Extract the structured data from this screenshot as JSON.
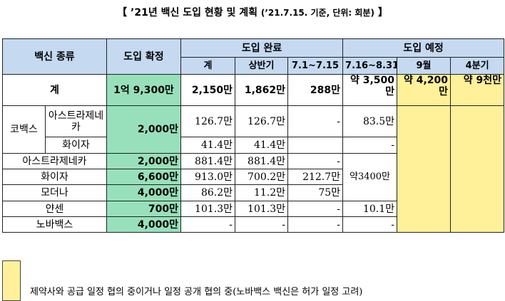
{
  "title": {
    "main": "【 ’21년 백신 도입 현황 및 계획 ",
    "sub": "(’21.7.15. 기준, 단위: 회분)",
    "end": " 】"
  },
  "header": {
    "vaccine_type": "백신 종류",
    "confirmed": "도입 확정",
    "completed": "도입 완료",
    "planned": "도입 예정",
    "total": "계",
    "first_half": "상반기",
    "jul_1_15": "7.1~7.15",
    "jul_16_aug_31": "7.16~8.31",
    "sep": "9월",
    "q4": "4분기"
  },
  "rows": {
    "total": {
      "label": "계",
      "confirmed": "1억 9,300만",
      "done_total": "2,150만",
      "first_half": "1,862만",
      "jul_1_15": "288만",
      "jul_16_aug_31": "약 3,500만",
      "sep": "약 4,200만",
      "q4": "약 9천만"
    },
    "covax": {
      "group_label": "코백스",
      "astra": {
        "label": "아스트라제네카",
        "confirmed": "2,000만",
        "done_total": "126.7만",
        "first_half": "126.7만",
        "jul_1_15": "-",
        "jul_16_aug_31": "83.5만"
      },
      "pfizer": {
        "label": "화이자",
        "done_total": "41.4만",
        "first_half": "41.4만",
        "jul_1_15": "",
        "jul_16_aug_31": "-"
      }
    },
    "astra": {
      "label": "아스트라제네카",
      "confirmed": "2,000만",
      "done_total": "881.4만",
      "first_half": "881.4만",
      "jul_1_15": "-"
    },
    "pfizer": {
      "label": "화이자",
      "confirmed": "6,600만",
      "done_total": "913.0만",
      "first_half": "700.2만",
      "jul_1_15": "212.7만",
      "jul_16_aug_31": "약3400만"
    },
    "moderna": {
      "label": "모더나",
      "confirmed": "4,000만",
      "done_total": "86.2만",
      "first_half": "11.2만",
      "jul_1_15": "75만"
    },
    "janssen": {
      "label": "얀센",
      "confirmed": "700만",
      "done_total": "101.3만",
      "first_half": "101.3만",
      "jul_1_15": "-",
      "jul_16_aug_31": "10.1만"
    },
    "novavax": {
      "label": "노바백스",
      "confirmed": "4,000만",
      "done_total": "-",
      "first_half": "-",
      "jul_1_15": "-",
      "jul_16_aug_31": "-"
    }
  },
  "legend": {
    "text": "제약사와 공급 일정 협의 중이거나 일정 공개 협의 중(노바백스 백신은 허가 일정 고려)",
    "color": "#fff199"
  }
}
